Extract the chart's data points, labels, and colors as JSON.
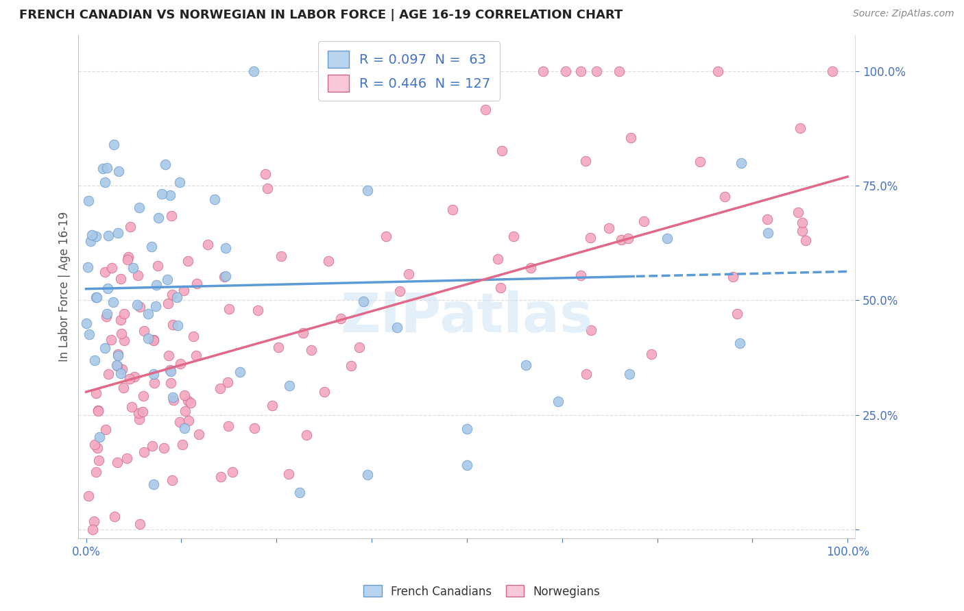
{
  "title": "FRENCH CANADIAN VS NORWEGIAN IN LABOR FORCE | AGE 16-19 CORRELATION CHART",
  "source": "Source: ZipAtlas.com",
  "ylabel": "In Labor Force | Age 16-19",
  "xlim": [
    0,
    1
  ],
  "ylim": [
    0,
    1
  ],
  "ytick_positions": [
    0.0,
    0.25,
    0.5,
    0.75,
    1.0
  ],
  "ytick_labels": [
    "",
    "25.0%",
    "50.0%",
    "75.0%",
    "100.0%"
  ],
  "xtick_positions": [
    0.0,
    0.125,
    0.25,
    0.375,
    0.5,
    0.625,
    0.75,
    0.875,
    1.0
  ],
  "blue_R": 0.097,
  "blue_N": 63,
  "pink_R": 0.446,
  "pink_N": 127,
  "blue_scatter_color": "#a8c8e8",
  "blue_edge_color": "#6699cc",
  "blue_line_color": "#5b9bd5",
  "blue_legend_color": "#b8d4ee",
  "pink_scatter_color": "#f4a8c0",
  "pink_edge_color": "#cc6688",
  "pink_line_color": "#e06888",
  "pink_legend_color": "#f8c8d8",
  "title_color": "#222222",
  "source_color": "#888888",
  "ylabel_color": "#555555",
  "axis_tick_color": "#4472c4",
  "grid_color": "#dddddd",
  "watermark_color": "#cce4f6",
  "background_color": "#ffffff",
  "blue_line_intercept": 0.525,
  "blue_line_slope": 0.038,
  "blue_line_solid_end": 0.72,
  "pink_line_intercept": 0.3,
  "pink_line_slope": 0.47
}
